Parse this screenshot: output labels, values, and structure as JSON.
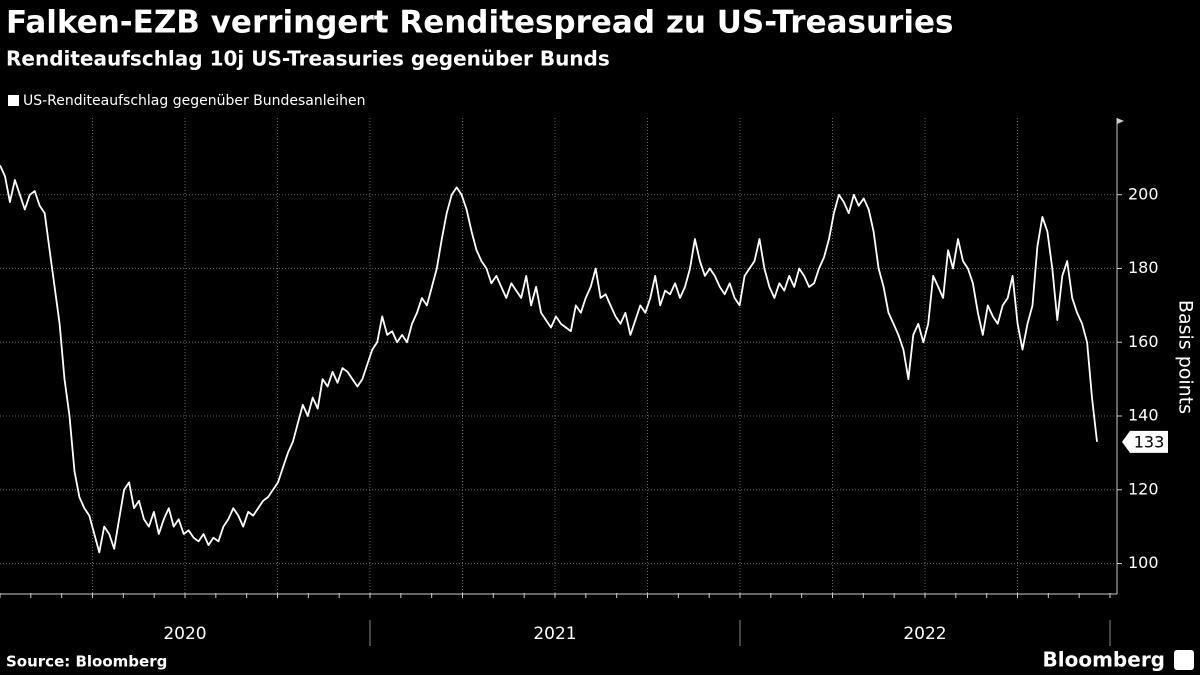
{
  "chart_data": {
    "type": "line",
    "title": "Falken-EZB verringert Renditespread zu US-Treasuries",
    "subtitle": "Renditeaufschlag 10j US-Treasuries gegenüber Bunds",
    "y_axis_label": "Basis points",
    "x_labels": [
      "2020",
      "2021",
      "2022"
    ],
    "source": "Source: Bloomberg",
    "logo": "Bloomberg",
    "ylim": [
      92,
      220
    ],
    "yticks": [
      100,
      120,
      140,
      160,
      180,
      200
    ],
    "grid": true,
    "legend": "top-left",
    "series": [
      {
        "name": "US-Renditeaufschlag gegenüber Bundesanleihen",
        "color": "#ffffff",
        "values": [
          208,
          205,
          198,
          204,
          200,
          196,
          200,
          201,
          197,
          195,
          185,
          175,
          165,
          150,
          140,
          125,
          118,
          115,
          113,
          108,
          103,
          110,
          108,
          104,
          112,
          120,
          122,
          115,
          117,
          112,
          110,
          114,
          108,
          112,
          115,
          110,
          112,
          108,
          109,
          107,
          106,
          108,
          105,
          107,
          106,
          110,
          112,
          115,
          113,
          110,
          114,
          113,
          115,
          117,
          118,
          120,
          122,
          126,
          130,
          133,
          138,
          143,
          140,
          145,
          142,
          150,
          148,
          152,
          149,
          153,
          152,
          150,
          148,
          150,
          154,
          158,
          160,
          167,
          162,
          163,
          160,
          162,
          160,
          165,
          168,
          172,
          170,
          175,
          180,
          188,
          195,
          200,
          202,
          200,
          196,
          190,
          185,
          182,
          180,
          176,
          178,
          175,
          172,
          176,
          174,
          172,
          178,
          170,
          175,
          168,
          166,
          164,
          167,
          165,
          164,
          163,
          170,
          168,
          172,
          175,
          180,
          172,
          173,
          170,
          167,
          165,
          168,
          162,
          166,
          170,
          168,
          172,
          178,
          170,
          174,
          173,
          176,
          172,
          175,
          180,
          188,
          182,
          178,
          180,
          178,
          175,
          173,
          176,
          172,
          170,
          178,
          180,
          182,
          188,
          180,
          175,
          172,
          176,
          174,
          178,
          175,
          180,
          178,
          175,
          176,
          180,
          183,
          188,
          195,
          200,
          198,
          195,
          200,
          197,
          199,
          196,
          190,
          180,
          175,
          168,
          165,
          162,
          158,
          150,
          162,
          165,
          160,
          165,
          178,
          175,
          172,
          185,
          180,
          188,
          182,
          180,
          176,
          168,
          162,
          170,
          167,
          165,
          170,
          172,
          178,
          165,
          158,
          165,
          170,
          186,
          194,
          190,
          180,
          166,
          178,
          182,
          172,
          168,
          165,
          160,
          145,
          133
        ]
      }
    ]
  }
}
